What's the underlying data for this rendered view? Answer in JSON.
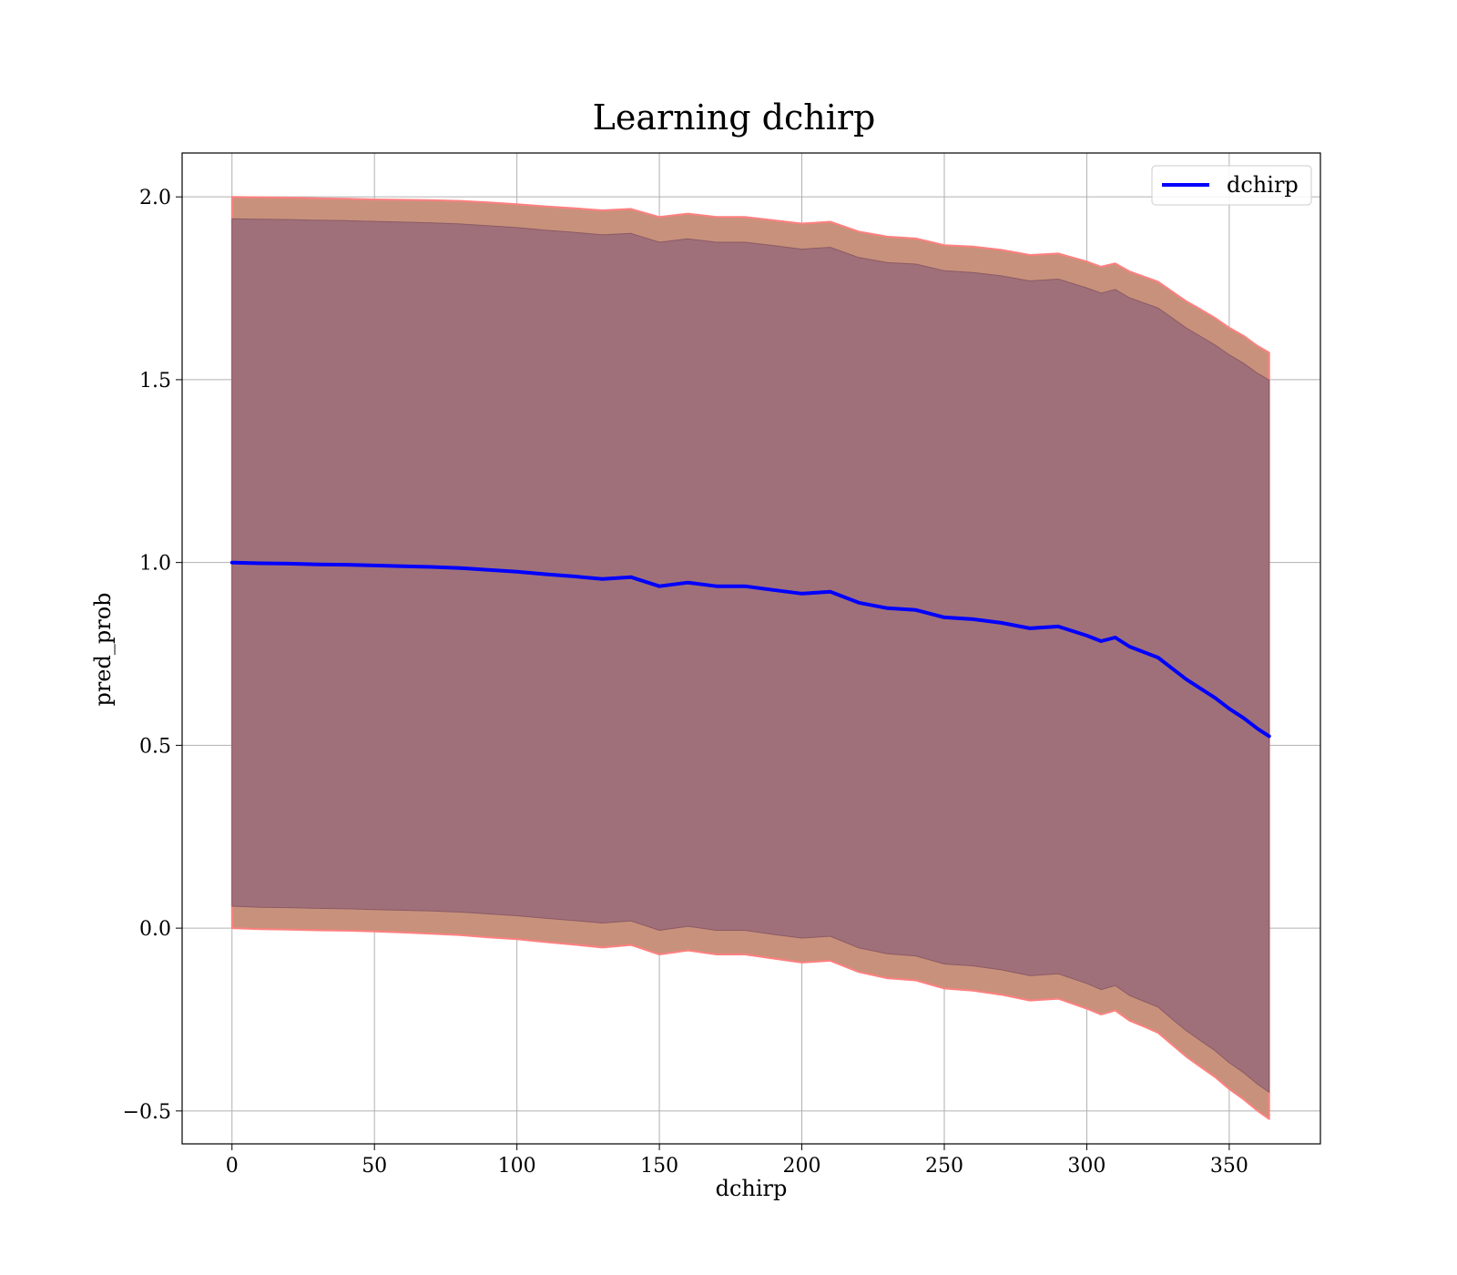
{
  "chart_data": {
    "type": "line",
    "title": "Learning dchirp",
    "xlabel": "dchirp",
    "ylabel": "pred_prob",
    "xlim": [
      -17.5,
      382
    ],
    "ylim": [
      -0.59,
      2.12
    ],
    "xticks": [
      0,
      50,
      100,
      150,
      200,
      250,
      300,
      350
    ],
    "yticks": [
      -0.5,
      0.0,
      0.5,
      1.0,
      1.5,
      2.0
    ],
    "xtick_labels": [
      "0",
      "50",
      "100",
      "150",
      "200",
      "250",
      "300",
      "350"
    ],
    "ytick_labels": [
      "−0.5",
      "0.0",
      "0.5",
      "1.0",
      "1.5",
      "2.0"
    ],
    "grid": true,
    "legend": {
      "position": "top-right",
      "entries": [
        "dchirp"
      ]
    },
    "colors": {
      "line": "#0000ff",
      "outer_band": "#c8917b",
      "outer_band_edge": "#ff8080",
      "inner_band": "#a0707a",
      "grid": "#b0b0b0"
    },
    "series": [
      {
        "name": "dchirp",
        "x": [
          0,
          10,
          20,
          30,
          40,
          50,
          60,
          70,
          80,
          90,
          100,
          110,
          120,
          130,
          140,
          150,
          160,
          170,
          180,
          190,
          200,
          210,
          220,
          230,
          240,
          250,
          260,
          270,
          280,
          290,
          300,
          305,
          310,
          315,
          320,
          325,
          330,
          335,
          340,
          345,
          350,
          355,
          360,
          364
        ],
        "y": [
          1.0,
          0.998,
          0.997,
          0.995,
          0.994,
          0.992,
          0.99,
          0.988,
          0.985,
          0.98,
          0.975,
          0.968,
          0.962,
          0.955,
          0.96,
          0.935,
          0.945,
          0.935,
          0.935,
          0.925,
          0.915,
          0.92,
          0.89,
          0.875,
          0.87,
          0.85,
          0.845,
          0.835,
          0.82,
          0.825,
          0.8,
          0.785,
          0.795,
          0.77,
          0.755,
          0.74,
          0.71,
          0.68,
          0.655,
          0.63,
          0.6,
          0.575,
          0.545,
          0.525
        ]
      }
    ],
    "bands": [
      {
        "x": [
          0,
          10,
          20,
          30,
          40,
          50,
          60,
          70,
          80,
          90,
          100,
          110,
          120,
          130,
          140,
          150,
          160,
          170,
          180,
          190,
          200,
          210,
          220,
          230,
          240,
          250,
          260,
          270,
          280,
          290,
          300,
          305,
          310,
          315,
          320,
          325,
          330,
          335,
          340,
          345,
          350,
          355,
          360,
          364
        ],
        "lower": [
          0.0,
          -0.003,
          -0.004,
          -0.006,
          -0.007,
          -0.009,
          -0.012,
          -0.015,
          -0.019,
          -0.025,
          -0.03,
          -0.038,
          -0.045,
          -0.053,
          -0.046,
          -0.072,
          -0.061,
          -0.072,
          -0.072,
          -0.083,
          -0.094,
          -0.089,
          -0.12,
          -0.137,
          -0.143,
          -0.165,
          -0.171,
          -0.182,
          -0.198,
          -0.193,
          -0.22,
          -0.236,
          -0.225,
          -0.253,
          -0.269,
          -0.286,
          -0.319,
          -0.352,
          -0.38,
          -0.407,
          -0.44,
          -0.468,
          -0.5,
          -0.522
        ],
        "upper": [
          2.0,
          1.999,
          1.998,
          1.996,
          1.995,
          1.993,
          1.992,
          1.991,
          1.989,
          1.985,
          1.98,
          1.974,
          1.969,
          1.963,
          1.967,
          1.945,
          1.954,
          1.945,
          1.945,
          1.936,
          1.927,
          1.932,
          1.905,
          1.891,
          1.886,
          1.868,
          1.864,
          1.855,
          1.841,
          1.845,
          1.823,
          1.809,
          1.818,
          1.796,
          1.782,
          1.768,
          1.741,
          1.714,
          1.692,
          1.669,
          1.642,
          1.62,
          1.592,
          1.574
        ]
      },
      {
        "x": [
          0,
          10,
          20,
          30,
          40,
          50,
          60,
          70,
          80,
          90,
          100,
          110,
          120,
          130,
          140,
          150,
          160,
          170,
          180,
          190,
          200,
          210,
          220,
          230,
          240,
          250,
          260,
          270,
          280,
          290,
          300,
          305,
          310,
          315,
          320,
          325,
          330,
          335,
          340,
          345,
          350,
          355,
          360,
          364
        ],
        "lower": [
          0.06,
          0.057,
          0.056,
          0.054,
          0.053,
          0.051,
          0.049,
          0.047,
          0.044,
          0.039,
          0.034,
          0.027,
          0.021,
          0.014,
          0.02,
          -0.006,
          0.005,
          -0.006,
          -0.006,
          -0.017,
          -0.027,
          -0.022,
          -0.054,
          -0.07,
          -0.076,
          -0.098,
          -0.103,
          -0.114,
          -0.13,
          -0.125,
          -0.151,
          -0.168,
          -0.157,
          -0.184,
          -0.2,
          -0.216,
          -0.249,
          -0.281,
          -0.308,
          -0.335,
          -0.368,
          -0.395,
          -0.427,
          -0.449
        ],
        "upper": [
          1.94,
          1.939,
          1.938,
          1.936,
          1.935,
          1.933,
          1.931,
          1.929,
          1.926,
          1.921,
          1.916,
          1.909,
          1.903,
          1.896,
          1.9,
          1.876,
          1.885,
          1.876,
          1.876,
          1.867,
          1.857,
          1.862,
          1.834,
          1.82,
          1.816,
          1.798,
          1.793,
          1.784,
          1.77,
          1.775,
          1.751,
          1.737,
          1.747,
          1.724,
          1.71,
          1.696,
          1.669,
          1.641,
          1.618,
          1.595,
          1.568,
          1.545,
          1.517,
          1.499
        ]
      }
    ]
  }
}
